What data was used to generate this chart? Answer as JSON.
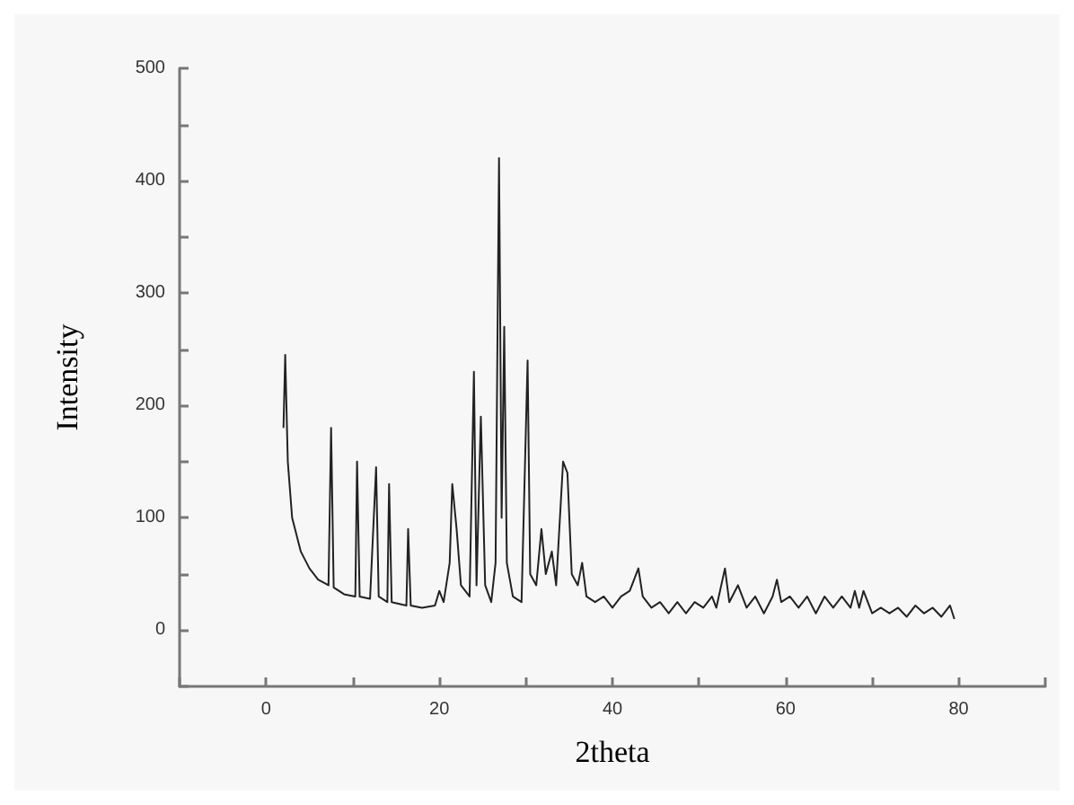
{
  "chart_data": {
    "type": "line",
    "xlabel": "2theta",
    "ylabel": "Intensity",
    "xlim": [
      -10,
      90
    ],
    "xticks": [
      {
        "value": -10,
        "label": null
      },
      0,
      {
        "value": 10,
        "label": null
      },
      20,
      {
        "value": 30,
        "label": null
      },
      40,
      {
        "value": 50,
        "label": null
      },
      60,
      {
        "value": 70,
        "label": null
      },
      80,
      {
        "value": 90,
        "label": null
      }
    ],
    "ylim": [
      -50,
      500
    ],
    "yticks": [
      {
        "value": -50,
        "label": null
      },
      0,
      {
        "value": 50,
        "label": null
      },
      100,
      {
        "value": 150,
        "label": null
      },
      200,
      {
        "value": 250,
        "label": null
      },
      300,
      {
        "value": 350,
        "label": null
      },
      400,
      {
        "value": 450,
        "label": null
      },
      500
    ],
    "grid": false,
    "marker": "none",
    "line_style": "solid",
    "series": [
      {
        "color": "#222222",
        "x": [
          2.0,
          2.2,
          2.5,
          3,
          4,
          5,
          6,
          7.2,
          7.5,
          7.8,
          9,
          10.3,
          10.5,
          10.8,
          12,
          12.7,
          13,
          14,
          14.2,
          14.5,
          16.2,
          16.4,
          16.7,
          18,
          19.5,
          20,
          20.5,
          21.2,
          21.5,
          22,
          22.5,
          23.5,
          24,
          24.3,
          24.8,
          25.3,
          26,
          26.5,
          26.9,
          27.2,
          27.5,
          27.8,
          28.5,
          29.5,
          30.2,
          30.5,
          31.2,
          31.8,
          32.3,
          33,
          33.5,
          34.3,
          34.8,
          35.3,
          36,
          36.5,
          37,
          38,
          39,
          40,
          41,
          42,
          43,
          43.5,
          44.5,
          45.5,
          46.5,
          47.5,
          48.5,
          49.5,
          50.5,
          51.5,
          52,
          53,
          53.5,
          54.5,
          55.5,
          56.5,
          57.5,
          58.5,
          59,
          59.5,
          60.5,
          61.5,
          62.5,
          63.5,
          64.5,
          65.5,
          66.5,
          67.5,
          68,
          68.5,
          69,
          70,
          71,
          72,
          73,
          74,
          75,
          76,
          77,
          78,
          79,
          79.5
        ],
        "values": [
          180,
          245,
          150,
          100,
          70,
          55,
          45,
          40,
          180,
          38,
          32,
          30,
          150,
          30,
          28,
          145,
          30,
          25,
          130,
          25,
          22,
          90,
          22,
          20,
          22,
          35,
          25,
          60,
          130,
          90,
          40,
          30,
          230,
          40,
          190,
          40,
          25,
          60,
          420,
          100,
          270,
          60,
          30,
          25,
          240,
          50,
          40,
          90,
          50,
          70,
          40,
          150,
          140,
          50,
          40,
          60,
          30,
          25,
          30,
          20,
          30,
          35,
          55,
          30,
          20,
          25,
          15,
          25,
          15,
          25,
          20,
          30,
          20,
          55,
          25,
          40,
          20,
          30,
          15,
          30,
          45,
          25,
          30,
          20,
          30,
          15,
          30,
          20,
          30,
          20,
          35,
          20,
          35,
          15,
          20,
          15,
          20,
          12,
          22,
          15,
          20,
          12,
          22,
          10
        ]
      }
    ]
  }
}
